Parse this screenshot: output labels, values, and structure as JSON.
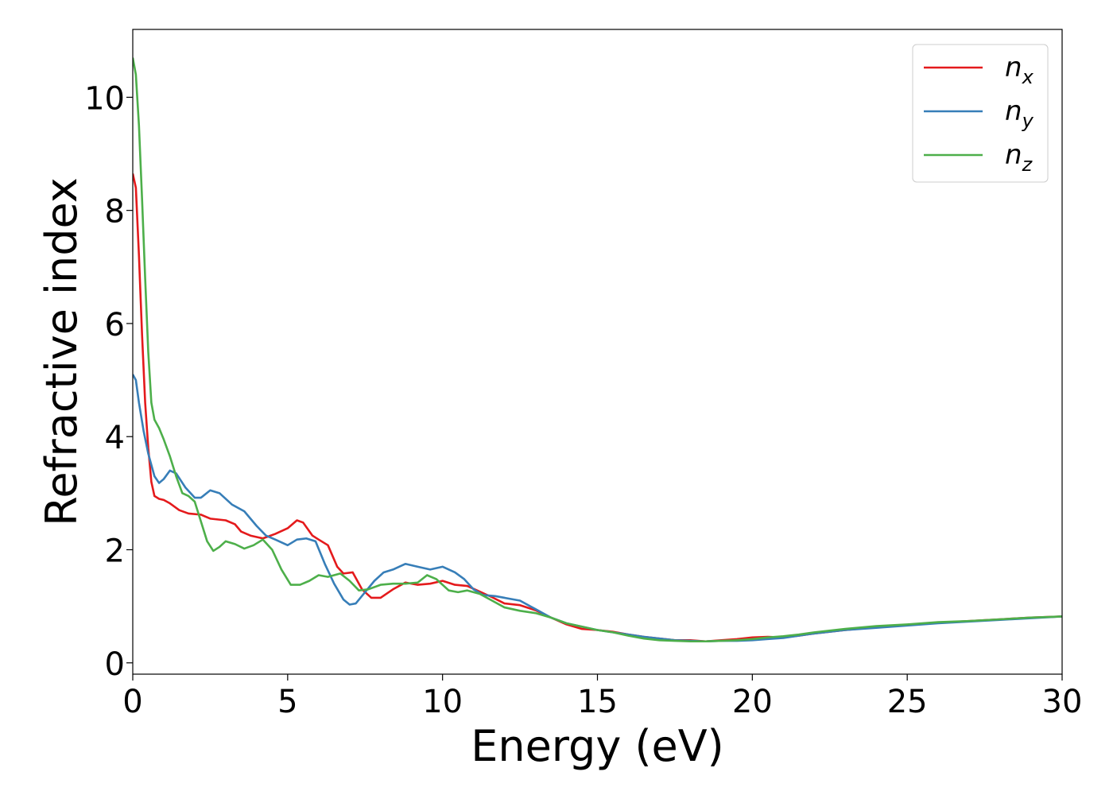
{
  "chart_data": {
    "type": "line",
    "xlabel": "Energy (eV)",
    "ylabel": "Refractive index",
    "xlim": [
      0,
      30
    ],
    "ylim": [
      -0.2,
      11.2
    ],
    "xticks": [
      0,
      5,
      10,
      15,
      20,
      25,
      30
    ],
    "yticks": [
      0,
      2,
      4,
      6,
      8,
      10
    ],
    "xtick_labels": [
      "0",
      "5",
      "10",
      "15",
      "20",
      "25",
      "30"
    ],
    "ytick_labels": [
      "0",
      "2",
      "4",
      "6",
      "8",
      "10"
    ],
    "grid": false,
    "legend": "top-right",
    "series": [
      {
        "name": "n_x",
        "label_base": "n",
        "label_sub": "x",
        "color": "#e41a1c",
        "points": [
          [
            0,
            8.65
          ],
          [
            0.1,
            8.4
          ],
          [
            0.2,
            7.2
          ],
          [
            0.3,
            5.8
          ],
          [
            0.4,
            4.6
          ],
          [
            0.5,
            3.8
          ],
          [
            0.6,
            3.2
          ],
          [
            0.7,
            2.95
          ],
          [
            0.85,
            2.9
          ],
          [
            1.0,
            2.88
          ],
          [
            1.2,
            2.82
          ],
          [
            1.5,
            2.7
          ],
          [
            1.8,
            2.64
          ],
          [
            2.2,
            2.62
          ],
          [
            2.5,
            2.55
          ],
          [
            3.0,
            2.52
          ],
          [
            3.3,
            2.45
          ],
          [
            3.5,
            2.32
          ],
          [
            3.8,
            2.25
          ],
          [
            4.2,
            2.2
          ],
          [
            4.6,
            2.28
          ],
          [
            5.0,
            2.38
          ],
          [
            5.3,
            2.52
          ],
          [
            5.5,
            2.48
          ],
          [
            5.8,
            2.25
          ],
          [
            6.0,
            2.18
          ],
          [
            6.3,
            2.08
          ],
          [
            6.6,
            1.7
          ],
          [
            6.8,
            1.58
          ],
          [
            7.1,
            1.6
          ],
          [
            7.4,
            1.3
          ],
          [
            7.7,
            1.15
          ],
          [
            8.0,
            1.15
          ],
          [
            8.4,
            1.3
          ],
          [
            8.8,
            1.42
          ],
          [
            9.2,
            1.38
          ],
          [
            9.6,
            1.4
          ],
          [
            10.0,
            1.45
          ],
          [
            10.4,
            1.38
          ],
          [
            10.8,
            1.36
          ],
          [
            11.2,
            1.26
          ],
          [
            11.6,
            1.16
          ],
          [
            12.0,
            1.05
          ],
          [
            12.5,
            1.02
          ],
          [
            13.0,
            0.93
          ],
          [
            13.5,
            0.8
          ],
          [
            14.0,
            0.68
          ],
          [
            14.5,
            0.6
          ],
          [
            15.0,
            0.58
          ],
          [
            15.5,
            0.55
          ],
          [
            16.0,
            0.5
          ],
          [
            16.5,
            0.46
          ],
          [
            17.0,
            0.43
          ],
          [
            17.5,
            0.4
          ],
          [
            18.0,
            0.4
          ],
          [
            18.5,
            0.38
          ],
          [
            19.0,
            0.4
          ],
          [
            19.5,
            0.42
          ],
          [
            20.0,
            0.45
          ],
          [
            20.5,
            0.46
          ],
          [
            21.0,
            0.45
          ],
          [
            21.5,
            0.48
          ],
          [
            22.0,
            0.52
          ],
          [
            23.0,
            0.58
          ],
          [
            24.0,
            0.63
          ],
          [
            25.0,
            0.67
          ],
          [
            26.0,
            0.71
          ],
          [
            27.0,
            0.74
          ],
          [
            28.0,
            0.77
          ],
          [
            29.0,
            0.8
          ],
          [
            30.0,
            0.82
          ]
        ]
      },
      {
        "name": "n_y",
        "label_base": "n",
        "label_sub": "y",
        "color": "#377eb8",
        "points": [
          [
            0,
            5.1
          ],
          [
            0.1,
            5.0
          ],
          [
            0.2,
            4.6
          ],
          [
            0.35,
            4.1
          ],
          [
            0.5,
            3.7
          ],
          [
            0.7,
            3.3
          ],
          [
            0.85,
            3.18
          ],
          [
            1.0,
            3.25
          ],
          [
            1.2,
            3.4
          ],
          [
            1.4,
            3.35
          ],
          [
            1.7,
            3.1
          ],
          [
            2.0,
            2.92
          ],
          [
            2.2,
            2.92
          ],
          [
            2.5,
            3.05
          ],
          [
            2.8,
            3.0
          ],
          [
            3.2,
            2.8
          ],
          [
            3.6,
            2.68
          ],
          [
            4.0,
            2.42
          ],
          [
            4.3,
            2.25
          ],
          [
            4.6,
            2.18
          ],
          [
            5.0,
            2.08
          ],
          [
            5.3,
            2.18
          ],
          [
            5.6,
            2.2
          ],
          [
            5.9,
            2.15
          ],
          [
            6.2,
            1.75
          ],
          [
            6.5,
            1.4
          ],
          [
            6.8,
            1.12
          ],
          [
            7.0,
            1.03
          ],
          [
            7.2,
            1.05
          ],
          [
            7.5,
            1.25
          ],
          [
            7.8,
            1.45
          ],
          [
            8.1,
            1.6
          ],
          [
            8.4,
            1.65
          ],
          [
            8.8,
            1.75
          ],
          [
            9.2,
            1.7
          ],
          [
            9.6,
            1.65
          ],
          [
            10.0,
            1.7
          ],
          [
            10.4,
            1.6
          ],
          [
            10.7,
            1.48
          ],
          [
            11.0,
            1.3
          ],
          [
            11.3,
            1.2
          ],
          [
            11.7,
            1.18
          ],
          [
            12.0,
            1.15
          ],
          [
            12.5,
            1.1
          ],
          [
            13.0,
            0.95
          ],
          [
            13.5,
            0.8
          ],
          [
            14.0,
            0.7
          ],
          [
            14.5,
            0.64
          ],
          [
            15.0,
            0.58
          ],
          [
            15.5,
            0.54
          ],
          [
            16.0,
            0.5
          ],
          [
            16.5,
            0.46
          ],
          [
            17.0,
            0.43
          ],
          [
            17.5,
            0.4
          ],
          [
            18.0,
            0.39
          ],
          [
            18.5,
            0.38
          ],
          [
            19.0,
            0.39
          ],
          [
            19.5,
            0.39
          ],
          [
            20.0,
            0.4
          ],
          [
            20.5,
            0.42
          ],
          [
            21.0,
            0.44
          ],
          [
            21.5,
            0.48
          ],
          [
            22.0,
            0.52
          ],
          [
            23.0,
            0.58
          ],
          [
            24.0,
            0.62
          ],
          [
            25.0,
            0.66
          ],
          [
            26.0,
            0.7
          ],
          [
            27.0,
            0.73
          ],
          [
            28.0,
            0.76
          ],
          [
            29.0,
            0.79
          ],
          [
            30.0,
            0.82
          ]
        ]
      },
      {
        "name": "n_z",
        "label_base": "n",
        "label_sub": "z",
        "color": "#4daf4a",
        "points": [
          [
            0,
            10.7
          ],
          [
            0.1,
            10.4
          ],
          [
            0.2,
            9.5
          ],
          [
            0.3,
            8.2
          ],
          [
            0.4,
            6.8
          ],
          [
            0.5,
            5.5
          ],
          [
            0.6,
            4.6
          ],
          [
            0.7,
            4.3
          ],
          [
            0.85,
            4.15
          ],
          [
            1.0,
            3.95
          ],
          [
            1.2,
            3.65
          ],
          [
            1.4,
            3.3
          ],
          [
            1.6,
            3.0
          ],
          [
            1.8,
            2.95
          ],
          [
            2.0,
            2.85
          ],
          [
            2.2,
            2.5
          ],
          [
            2.4,
            2.15
          ],
          [
            2.6,
            1.98
          ],
          [
            2.8,
            2.05
          ],
          [
            3.0,
            2.15
          ],
          [
            3.3,
            2.1
          ],
          [
            3.6,
            2.02
          ],
          [
            3.9,
            2.08
          ],
          [
            4.2,
            2.18
          ],
          [
            4.5,
            2.0
          ],
          [
            4.8,
            1.65
          ],
          [
            5.1,
            1.38
          ],
          [
            5.4,
            1.38
          ],
          [
            5.7,
            1.45
          ],
          [
            6.0,
            1.55
          ],
          [
            6.3,
            1.52
          ],
          [
            6.7,
            1.58
          ],
          [
            7.0,
            1.45
          ],
          [
            7.3,
            1.28
          ],
          [
            7.6,
            1.3
          ],
          [
            8.0,
            1.38
          ],
          [
            8.4,
            1.4
          ],
          [
            8.8,
            1.4
          ],
          [
            9.2,
            1.42
          ],
          [
            9.5,
            1.55
          ],
          [
            9.8,
            1.48
          ],
          [
            10.2,
            1.28
          ],
          [
            10.5,
            1.25
          ],
          [
            10.8,
            1.28
          ],
          [
            11.2,
            1.22
          ],
          [
            11.6,
            1.1
          ],
          [
            12.0,
            0.98
          ],
          [
            12.5,
            0.92
          ],
          [
            13.0,
            0.88
          ],
          [
            13.5,
            0.8
          ],
          [
            14.0,
            0.7
          ],
          [
            14.5,
            0.64
          ],
          [
            15.0,
            0.58
          ],
          [
            15.5,
            0.54
          ],
          [
            16.0,
            0.48
          ],
          [
            16.5,
            0.43
          ],
          [
            17.0,
            0.4
          ],
          [
            17.5,
            0.39
          ],
          [
            18.0,
            0.38
          ],
          [
            18.5,
            0.38
          ],
          [
            19.0,
            0.39
          ],
          [
            19.5,
            0.4
          ],
          [
            20.0,
            0.42
          ],
          [
            20.5,
            0.45
          ],
          [
            21.0,
            0.47
          ],
          [
            21.5,
            0.5
          ],
          [
            22.0,
            0.54
          ],
          [
            23.0,
            0.6
          ],
          [
            24.0,
            0.65
          ],
          [
            25.0,
            0.68
          ],
          [
            26.0,
            0.72
          ],
          [
            27.0,
            0.74
          ],
          [
            28.0,
            0.77
          ],
          [
            29.0,
            0.8
          ],
          [
            30.0,
            0.82
          ]
        ]
      }
    ]
  }
}
